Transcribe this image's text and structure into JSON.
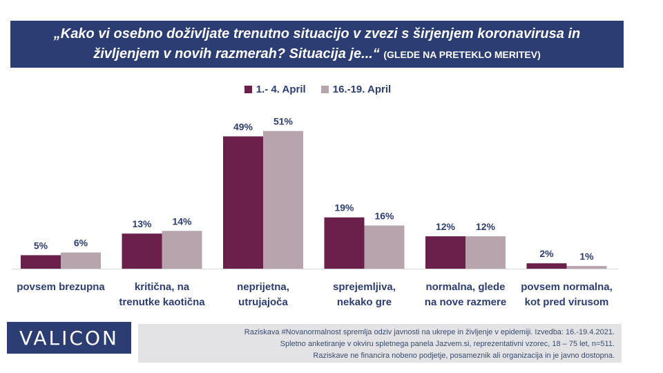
{
  "title": {
    "line1": "„Kako vi osebno doživljate trenutno situacijo v zvezi s širjenjem koronavirusa in",
    "line2": "življenjem v novih razmerah? Situacija je...“",
    "subtitle": "(GLEDE NA PRETEKLO MERITEV)"
  },
  "colors": {
    "banner": "#2b3d73",
    "series1": "#6b1f4b",
    "series2": "#b8a4ac",
    "label": "#2b3d73"
  },
  "chart_data": {
    "type": "bar",
    "categories": [
      [
        "povsem brezupna"
      ],
      [
        "kritična, na",
        "trenutke kaotična"
      ],
      [
        "neprijetna,",
        "utrujajoča"
      ],
      [
        "sprejemljiva,",
        "nekako gre"
      ],
      [
        "normalna, glede",
        "na nove razmere"
      ],
      [
        "povsem normalna,",
        "kot pred virusom"
      ]
    ],
    "series": [
      {
        "name": "1.- 4. April",
        "values": [
          5,
          13,
          49,
          19,
          12,
          2
        ],
        "labels": [
          "5%",
          "13%",
          "49%",
          "19%",
          "12%",
          "2%"
        ]
      },
      {
        "name": "16.-19. April",
        "values": [
          6,
          14,
          51,
          16,
          12,
          1
        ],
        "labels": [
          "6%",
          "14%",
          "51%",
          "16%",
          "12%",
          "1%"
        ]
      }
    ],
    "ylim": [
      0,
      55
    ],
    "legend": "top-center"
  },
  "logo": "VALICON",
  "footnote": [
    "Raziskava #Novanormalnost spremlja odziv javnosti na ukrepe in življenje v epidemiji. Izvedba: 16.-19.4.2021.",
    "Spletno anketiranje v okviru spletnega panela Jazvem.si, reprezentativni vzorec, 18 – 75 let, n=511.",
    "Raziskave ne financira nobeno podjetje, posameznik ali organizacija in je javno dostopna."
  ]
}
